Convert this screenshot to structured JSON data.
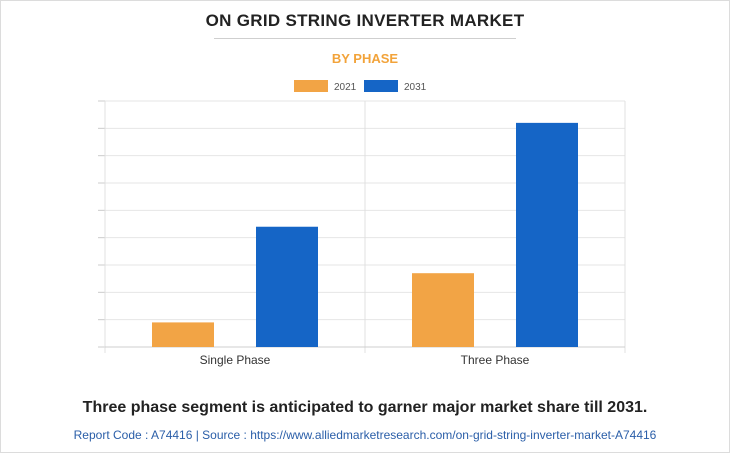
{
  "header": {
    "title": "ON GRID STRING INVERTER MARKET",
    "subtitle": "BY PHASE"
  },
  "chart_data": {
    "type": "bar",
    "categories": [
      "Single Phase",
      "Three Phase"
    ],
    "series": [
      {
        "name": "2021",
        "color": "#f2a445",
        "values": [
          0.9,
          2.7
        ]
      },
      {
        "name": "2031",
        "color": "#1565c6",
        "values": [
          4.4,
          8.2
        ]
      }
    ],
    "ylim": [
      0,
      9
    ],
    "grid": true,
    "legend": "top-center",
    "xlabel": "",
    "ylabel": ""
  },
  "footer": {
    "caption": "Three phase segment is anticipated to garner major market share till 2031.",
    "source": "Report Code : A74416  |  Source : https://www.alliedmarketresearch.com/on-grid-string-inverter-market-A74416"
  }
}
